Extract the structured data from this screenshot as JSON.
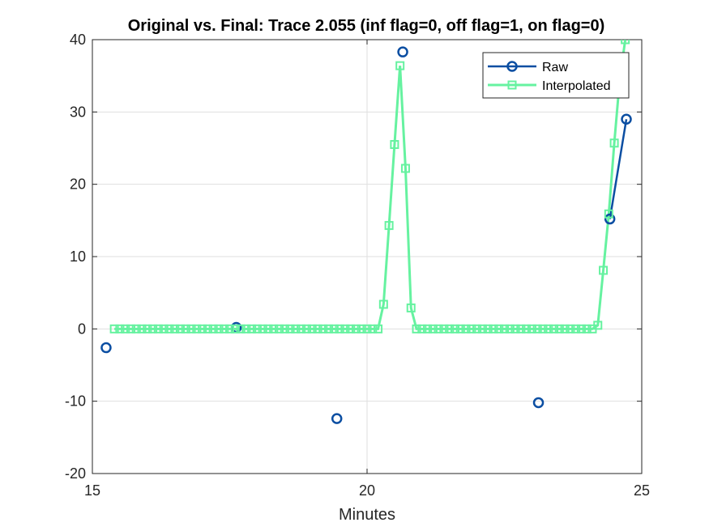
{
  "chart_data": {
    "type": "line",
    "title": "Original vs. Final: Trace 2.055 (inf flag=0, off flag=1, on flag=0)",
    "xlabel": "Minutes",
    "ylabel": "",
    "xlim": [
      15,
      25
    ],
    "ylim": [
      -20,
      40
    ],
    "xticks": [
      15,
      20,
      25
    ],
    "yticks": [
      -20,
      -10,
      0,
      10,
      20,
      30,
      40
    ],
    "xtick_labels": [
      "15",
      "20",
      "25"
    ],
    "ytick_labels": [
      "-20",
      "-10",
      "0",
      "10",
      "20",
      "30",
      "40"
    ],
    "grid": true,
    "legend_position": "top-right",
    "series": [
      {
        "name": "Raw",
        "color": "#0b4ea2",
        "marker": "circle",
        "line": "segments-where-consecutive",
        "points": [
          [
            15.25,
            -2.6
          ],
          [
            17.62,
            0.2
          ],
          [
            19.45,
            -12.4
          ],
          [
            20.65,
            38.3
          ],
          [
            23.12,
            -10.2
          ],
          [
            24.42,
            15.2
          ],
          [
            24.72,
            29.0
          ]
        ],
        "connected_segments": [
          [
            5,
            6
          ]
        ]
      },
      {
        "name": "Interpolated",
        "color": "#66f2a0",
        "marker": "square",
        "x": [
          15.4,
          15.5,
          15.6,
          15.7,
          15.8,
          15.9,
          16.0,
          16.1,
          16.2,
          16.3,
          16.4,
          16.5,
          16.6,
          16.7,
          16.8,
          16.9,
          17.0,
          17.1,
          17.2,
          17.3,
          17.4,
          17.5,
          17.6,
          17.7,
          17.8,
          17.9,
          18.0,
          18.1,
          18.2,
          18.3,
          18.4,
          18.5,
          18.6,
          18.7,
          18.8,
          18.9,
          19.0,
          19.1,
          19.2,
          19.3,
          19.4,
          19.5,
          19.6,
          19.7,
          19.8,
          19.9,
          20.0,
          20.1,
          20.2,
          20.3,
          20.4,
          20.5,
          20.6,
          20.7,
          20.8,
          20.9,
          21.0,
          21.1,
          21.2,
          21.3,
          21.4,
          21.5,
          21.6,
          21.7,
          21.8,
          21.9,
          22.0,
          22.1,
          22.2,
          22.3,
          22.4,
          22.5,
          22.6,
          22.7,
          22.8,
          22.9,
          23.0,
          23.1,
          23.2,
          23.3,
          23.4,
          23.5,
          23.6,
          23.7,
          23.8,
          23.9,
          24.0,
          24.1,
          24.2,
          24.3,
          24.4,
          24.5,
          24.6,
          24.7
        ],
        "y": [
          0,
          0,
          0,
          0,
          0,
          0,
          0,
          0,
          0,
          0,
          0,
          0,
          0,
          0,
          0,
          0,
          0,
          0,
          0,
          0,
          0,
          0,
          0,
          0,
          0,
          0,
          0,
          0,
          0,
          0,
          0,
          0,
          0,
          0,
          0,
          0,
          0,
          0,
          0,
          0,
          0,
          0,
          0,
          0,
          0,
          0,
          0,
          0,
          0,
          3.4,
          14.3,
          25.5,
          36.4,
          22.2,
          2.9,
          0,
          0,
          0,
          0,
          0,
          0,
          0,
          0,
          0,
          0,
          0,
          0,
          0,
          0,
          0,
          0,
          0,
          0,
          0,
          0,
          0,
          0,
          0,
          0,
          0,
          0,
          0,
          0,
          0,
          0,
          0,
          0,
          0,
          0.5,
          8.1,
          15.9,
          25.7,
          34.5,
          40
        ]
      }
    ]
  }
}
